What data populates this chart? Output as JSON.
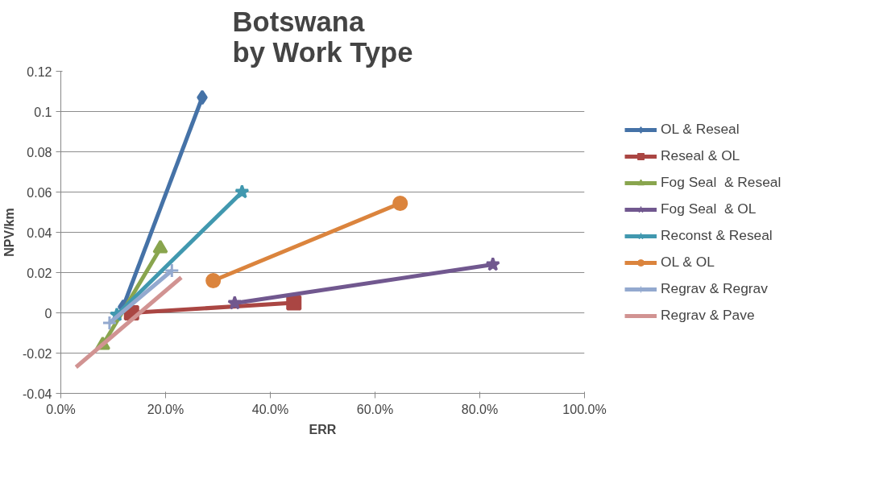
{
  "chart_data": {
    "type": "line",
    "title": "Botswana\nby Work Type",
    "xlabel": "ERR",
    "ylabel": "NPV/km",
    "xlim": [
      0,
      1
    ],
    "xticks": [
      {
        "value": 0,
        "label": "0.0%"
      },
      {
        "value": 0.2,
        "label": "20.0%"
      },
      {
        "value": 0.4,
        "label": "40.0%"
      },
      {
        "value": 0.6,
        "label": "60.0%"
      },
      {
        "value": 0.8,
        "label": "80.0%"
      },
      {
        "value": 1,
        "label": "100.0%"
      }
    ],
    "ylim": [
      -0.04,
      0.12
    ],
    "yticks": [
      -0.04,
      -0.02,
      0,
      0.02,
      0.04,
      0.06,
      0.08,
      0.1,
      0.12
    ],
    "grid": "y",
    "legend": "right",
    "series": [
      {
        "name": "OL & Reseal",
        "color": "#4572a7",
        "marker": "diamond",
        "x": [
          0.27,
          0.119
        ],
        "values": [
          0.107,
          0.003
        ]
      },
      {
        "name": "Reseal & OL",
        "color": "#aa4643",
        "marker": "square",
        "x": [
          0.445,
          0.135
        ],
        "values": [
          0.005,
          0.0
        ]
      },
      {
        "name": "Fog Seal  & Reseal",
        "color": "#89a54e",
        "marker": "triangle",
        "x": [
          0.19,
          0.08
        ],
        "values": [
          0.032,
          -0.016
        ]
      },
      {
        "name": "Fog Seal  & OL",
        "color": "#71588f",
        "marker": "star",
        "x": [
          0.825,
          0.332
        ],
        "values": [
          0.024,
          0.0048
        ]
      },
      {
        "name": "Reconst & Reseal",
        "color": "#4198af",
        "marker": "star",
        "x": [
          0.346,
          0.107
        ],
        "values": [
          0.06,
          -0.001
        ]
      },
      {
        "name": "OL & OL",
        "color": "#db843d",
        "marker": "circle",
        "x": [
          0.648,
          0.291
        ],
        "values": [
          0.0544,
          0.016
        ]
      },
      {
        "name": "Regrav & Regrav",
        "color": "#93a9cf",
        "marker": "cross",
        "x": [
          0.212,
          0.093
        ],
        "values": [
          0.021,
          -0.005
        ]
      },
      {
        "name": "Regrav & Pave",
        "color": "#d19392",
        "marker": "none",
        "x": [
          0.23,
          0.029
        ],
        "values": [
          0.0176,
          -0.027
        ]
      }
    ]
  }
}
